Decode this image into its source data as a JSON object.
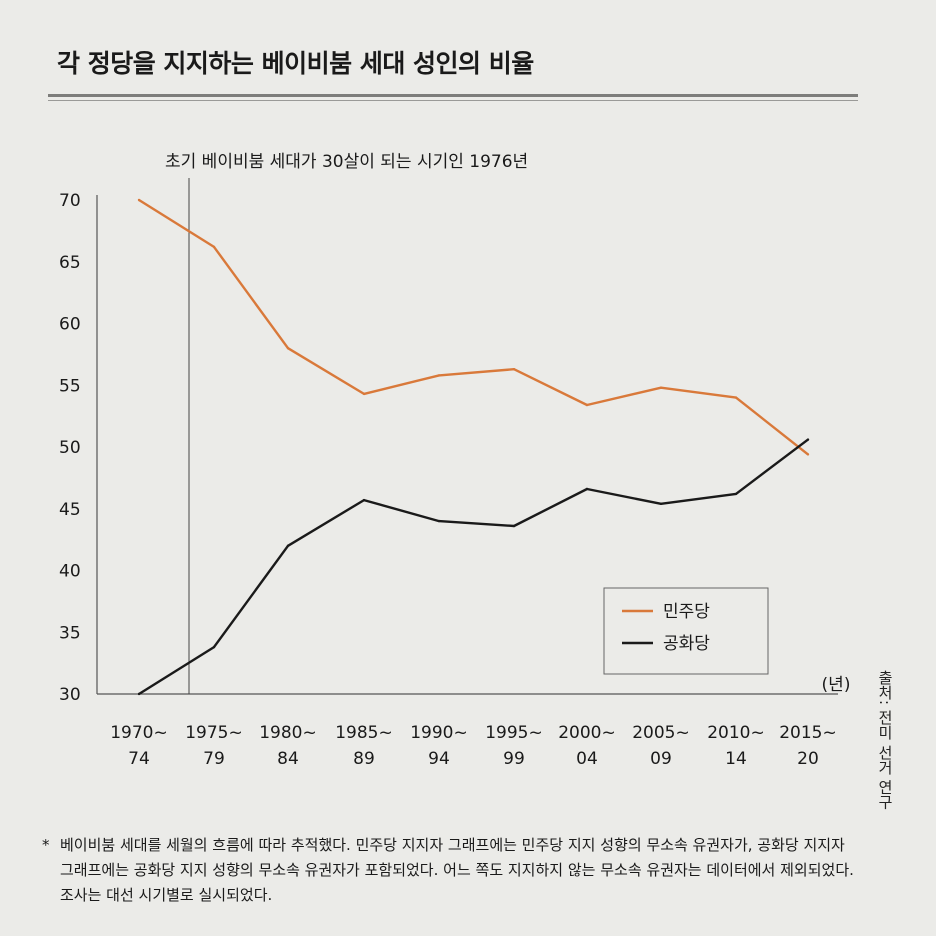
{
  "title": "각 정당을 지지하는 베이비붐 세대 성인의 비율",
  "source": "출처: 전미 선거 연구",
  "footnote_mark": "*",
  "footnote": "베이비붐 세대를 세월의 흐름에 따라 추적했다. 민주당 지지자 그래프에는 민주당 지지 성향의 무소속 유권자가, 공화당 지지자 그래프에는 공화당 지지 성향의 무소속 유권자가 포함되었다. 어느 쪽도 지지하지 않는 무소속 유권자는 데이터에서 제외되었다. 조사는 대선 시기별로 실시되었다.",
  "chart_data": {
    "type": "line",
    "title": "각 정당을 지지하는 베이비붐 세대 성인의 비율",
    "categories": [
      [
        "1970~",
        "74"
      ],
      [
        "1975~",
        "79"
      ],
      [
        "1980~",
        "84"
      ],
      [
        "1985~",
        "89"
      ],
      [
        "1990~",
        "94"
      ],
      [
        "1995~",
        "99"
      ],
      [
        "2000~",
        "04"
      ],
      [
        "2005~",
        "09"
      ],
      [
        "2010~",
        "14"
      ],
      [
        "2015~",
        "20"
      ]
    ],
    "x_unit": "(년)",
    "ylim": [
      30,
      70
    ],
    "yticks": [
      30,
      35,
      40,
      45,
      50,
      55,
      60,
      65,
      70
    ],
    "grid": false,
    "legend_position": "bottom-right",
    "annotation": {
      "label": "초기 베이비붐 세대가 30살이 되는 시기인 1976년",
      "x": 1976
    },
    "series": [
      {
        "name": "민주당",
        "color": "#d9793a",
        "values": [
          70.0,
          66.2,
          58.0,
          54.3,
          55.8,
          56.3,
          53.4,
          54.8,
          54.0,
          49.4
        ]
      },
      {
        "name": "공화당",
        "color": "#1a1a1a",
        "values": [
          30.0,
          33.8,
          42.0,
          45.7,
          44.0,
          43.6,
          46.6,
          45.4,
          46.2,
          50.6
        ]
      }
    ]
  }
}
